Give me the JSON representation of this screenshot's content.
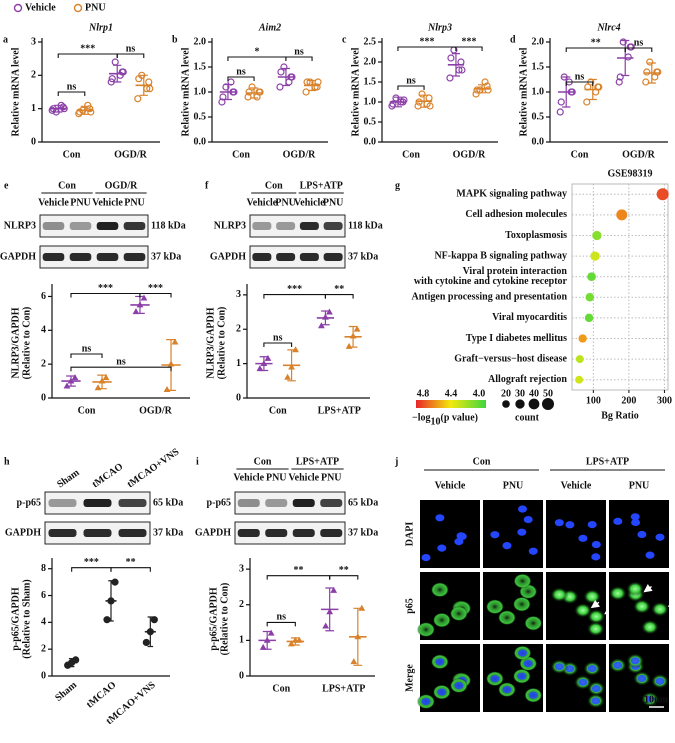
{
  "chart_data": [
    {
      "type": "dot",
      "letter": "a",
      "title": "Nlrp1",
      "ylabel": "Relative mRNA level",
      "categories": [
        "Con",
        "OGD/R"
      ],
      "marker": "open-circle",
      "legend": "top-left",
      "ylim": [
        0,
        3
      ],
      "yticks": [
        0,
        1,
        2,
        3
      ],
      "series": [
        {
          "name": "Vehicle",
          "color": "#8b3fa8",
          "values": [
            1.0,
            2.05
          ],
          "sd": [
            0.1,
            0.25
          ],
          "points": [
            [
              0.95,
              1.05,
              0.9,
              1.1,
              1.0,
              1.0
            ],
            [
              1.8,
              2.1,
              2.4,
              2.0,
              1.9,
              2.1
            ]
          ]
        },
        {
          "name": "PNU",
          "color": "#d9822b",
          "values": [
            0.95,
            1.7
          ],
          "sd": [
            0.12,
            0.3
          ],
          "points": [
            [
              0.85,
              1.0,
              0.95,
              1.1,
              0.9,
              0.9
            ],
            [
              1.3,
              1.8,
              2.0,
              1.6,
              1.9,
              1.6
            ]
          ]
        }
      ],
      "annotations": [
        "***",
        "ns",
        "ns"
      ]
    },
    {
      "type": "dot",
      "letter": "b",
      "title": "Aim2",
      "ylabel": "Relative mRNA level",
      "categories": [
        "Con",
        "OGD/R"
      ],
      "marker": "open-circle",
      "ylim": [
        0,
        2
      ],
      "yticks": [
        {
          "value": 0,
          "label": "0.0"
        },
        0.5,
        {
          "value": 1,
          "label": "1.0"
        },
        1.5,
        {
          "value": 2,
          "label": "2.0"
        }
      ],
      "series": [
        {
          "color": "#8b3fa8",
          "values": [
            1.0,
            1.3
          ],
          "sd": [
            0.15,
            0.17
          ],
          "points": [
            [
              0.8,
              1.0,
              1.1,
              1.2,
              0.9,
              1.0
            ],
            [
              1.1,
              1.3,
              1.5,
              1.2,
              1.4,
              1.3
            ]
          ]
        },
        {
          "color": "#d9822b",
          "values": [
            0.98,
            1.13
          ],
          "sd": [
            0.1,
            0.1
          ],
          "points": [
            [
              0.9,
              1.0,
              1.1,
              0.9,
              1.0,
              1.0
            ],
            [
              1.0,
              1.1,
              1.2,
              1.1,
              1.2,
              1.2
            ]
          ]
        }
      ],
      "annotations": [
        "*",
        "ns",
        "ns"
      ]
    },
    {
      "type": "dot",
      "letter": "c",
      "title": "Nlrp3",
      "ylabel": "Relative mRNA level",
      "categories": [
        "Con",
        "OGD/R"
      ],
      "marker": "open-circle",
      "ylim": [
        0,
        2.5
      ],
      "yticks": [
        {
          "value": 0,
          "label": "0.0"
        },
        0.5,
        {
          "value": 1,
          "label": "1.0"
        },
        1.5,
        {
          "value": 2,
          "label": "2.0"
        },
        2.5
      ],
      "series": [
        {
          "color": "#8b3fa8",
          "values": [
            1.0,
            1.93
          ],
          "sd": [
            0.12,
            0.28
          ],
          "points": [
            [
              0.9,
              1.0,
              1.1,
              1.0,
              0.95,
              1.05
            ],
            [
              1.6,
              2.0,
              2.3,
              1.8,
              2.1,
              1.8
            ]
          ]
        },
        {
          "color": "#d9822b",
          "values": [
            1.02,
            1.33
          ],
          "sd": [
            0.15,
            0.1
          ],
          "points": [
            [
              0.9,
              1.1,
              1.2,
              0.95,
              1.0,
              0.9
            ],
            [
              1.2,
              1.4,
              1.3,
              1.5,
              1.3,
              1.3
            ]
          ]
        }
      ],
      "annotations": [
        "***",
        "***",
        "ns"
      ]
    },
    {
      "type": "dot",
      "letter": "d",
      "title": "Nlrc4",
      "ylabel": "Relative mRNA level",
      "categories": [
        "Con",
        "OGD/R"
      ],
      "marker": "open-circle",
      "ylim": [
        0,
        2
      ],
      "yticks": [
        {
          "value": 0,
          "label": "0.0"
        },
        0.5,
        {
          "value": 1,
          "label": "1.0"
        },
        1.5,
        {
          "value": 2,
          "label": "2.0"
        }
      ],
      "series": [
        {
          "color": "#8b3fa8",
          "values": [
            1.0,
            1.68
          ],
          "sd": [
            0.3,
            0.35
          ],
          "points": [
            [
              0.6,
              1.0,
              1.3,
              1.2,
              0.8,
              1.0
            ],
            [
              1.2,
              1.9,
              2.0,
              1.7,
              1.3,
              1.9
            ]
          ]
        },
        {
          "color": "#d9822b",
          "values": [
            1.05,
            1.38
          ],
          "sd": [
            0.2,
            0.2
          ],
          "points": [
            [
              0.8,
              1.1,
              1.2,
              1.0,
              1.1,
              1.1
            ],
            [
              1.2,
              1.4,
              1.6,
              1.3,
              1.4,
              1.4
            ]
          ]
        }
      ],
      "annotations": [
        "**",
        "ns",
        "ns"
      ]
    },
    {
      "type": "dot",
      "ylabel": [
        "NLRP3/GAPDH",
        "(Relative to Con)"
      ],
      "categories": [
        "Con",
        "OGD/R"
      ],
      "marker": "triangle",
      "ylim": [
        0,
        6.5
      ],
      "yticks": [
        0,
        2,
        4,
        6
      ],
      "series": [
        {
          "color": "#8b3fa8",
          "values": [
            1.0,
            5.5
          ],
          "sd": [
            0.3,
            0.5
          ],
          "points": [
            [
              0.7,
              1.0,
              1.2
            ],
            [
              5.1,
              5.5,
              5.9
            ]
          ]
        },
        {
          "color": "#d9822b",
          "values": [
            0.95,
            1.95
          ],
          "sd": [
            0.4,
            1.5
          ],
          "points": [
            [
              0.6,
              1.0,
              1.2
            ],
            [
              0.5,
              2.0,
              3.3
            ]
          ]
        }
      ],
      "annotations": [
        "***",
        "***",
        "ns",
        "ns"
      ]
    },
    {
      "type": "dot",
      "ylabel": [
        "NLRP3/GAPDH",
        "(Relative to Con)"
      ],
      "categories": [
        "Con",
        "LPS+ATP"
      ],
      "marker": "triangle",
      "ylim": [
        0,
        3.2
      ],
      "yticks": [
        0,
        1,
        2,
        3
      ],
      "series": [
        {
          "color": "#8b3fa8",
          "values": [
            1.0,
            2.33
          ],
          "sd": [
            0.2,
            0.2
          ],
          "points": [
            [
              0.85,
              1.0,
              1.15
            ],
            [
              2.1,
              2.35,
              2.5
            ]
          ]
        },
        {
          "color": "#d9822b",
          "values": [
            0.95,
            1.78
          ],
          "sd": [
            0.45,
            0.3
          ],
          "points": [
            [
              0.6,
              0.9,
              1.4
            ],
            [
              1.5,
              1.8,
              2.0
            ]
          ]
        }
      ],
      "annotations": [
        "***",
        "**",
        "ns"
      ]
    },
    {
      "type": "bubble",
      "letter": "g",
      "title": "GSE98319",
      "terms": [
        [
          "MAPK signaling pathway"
        ],
        [
          "Cell adhesion molecules"
        ],
        [
          "Toxoplasmosis"
        ],
        [
          "NF-kappa B signaling pathway"
        ],
        [
          "Viral protein interaction",
          "with cytokine and cytokine receptor"
        ],
        [
          "Antigen processing and presentation"
        ],
        [
          "Viral myocarditis"
        ],
        [
          "Type I diabetes mellitus"
        ],
        [
          "Graft−versus−host disease"
        ],
        [
          "Allograft rejection"
        ]
      ],
      "term_colors": [
        "#111111",
        "#111111",
        "#111111",
        "#e8262a",
        "#111111",
        "#111111",
        "#111111",
        "#111111",
        "#111111",
        "#111111"
      ],
      "x": [
        295,
        180,
        110,
        105,
        95,
        90,
        88,
        70,
        62,
        60
      ],
      "count": [
        50,
        42,
        30,
        30,
        26,
        25,
        25,
        24,
        22,
        22
      ],
      "pvalue": [
        4.8,
        4.65,
        4.1,
        4.3,
        4.0,
        4.05,
        4.0,
        4.6,
        4.25,
        4.3
      ],
      "xlabel": "Bg Ratio",
      "xlim": [
        40,
        310
      ],
      "xticks": [
        100,
        200,
        300
      ],
      "grid": true,
      "colorscale": [
        "#e8262a",
        "#f2e90f",
        "#3fd63f"
      ],
      "clim": [
        4.9,
        3.9
      ],
      "colorbar_title": [
        "−log",
        "10",
        " (p value)"
      ],
      "colorbar_ticks": [
        4.8,
        4.4,
        {
          "value": 4,
          "label": "4.0"
        }
      ],
      "size_title": "count",
      "size_ticks": [
        20,
        30,
        40,
        50
      ]
    },
    {
      "type": "dot",
      "ylabel": [
        "p-p65/GAPDH",
        "(Relative to Sham)"
      ],
      "categories": [
        "Sham",
        "tMCAO",
        "tMCAO+VNS"
      ],
      "marker": "circle",
      "ylim": [
        0,
        8.5
      ],
      "yticks": [
        0,
        2,
        4,
        6,
        8
      ],
      "series": [
        {
          "color": "#222222",
          "values": [
            1.0,
            5.6,
            3.3
          ],
          "sd": [
            0.3,
            1.5,
            1.1
          ],
          "points": [
            [
              0.8,
              1.0,
              1.2
            ],
            [
              4.2,
              5.6,
              7.0
            ],
            [
              2.5,
              3.3,
              4.2
            ]
          ]
        }
      ],
      "annotations": [
        "***",
        "**"
      ]
    },
    {
      "type": "dot",
      "ylabel": [
        "p-p65/GAPDH",
        "(Relative to Con)"
      ],
      "categories": [
        "Con",
        "LPS+ATP"
      ],
      "marker": "triangle",
      "ylim": [
        0,
        3.2
      ],
      "yticks": [
        0,
        1,
        2,
        3
      ],
      "series": [
        {
          "color": "#8b3fa8",
          "values": [
            1.0,
            1.87
          ],
          "sd": [
            0.25,
            0.6
          ],
          "points": [
            [
              0.8,
              1.0,
              1.2
            ],
            [
              1.4,
              1.8,
              2.4
            ]
          ]
        },
        {
          "color": "#d9822b",
          "values": [
            0.97,
            1.1
          ],
          "sd": [
            0.1,
            0.8
          ],
          "points": [
            [
              0.9,
              1.0,
              1.0
            ],
            [
              0.4,
              1.1,
              1.9
            ]
          ]
        }
      ],
      "annotations": [
        "**",
        "**",
        "ns"
      ]
    }
  ],
  "blots": [
    {
      "letter": "e",
      "groups": [
        {
          "label": "Con",
          "lanes": [
            "Vehicle",
            "PNU"
          ]
        },
        {
          "label": "OGD/R",
          "lanes": [
            "Vehicle",
            "PNU"
          ]
        }
      ],
      "rows": [
        {
          "name": "NLRP3",
          "kda": "118 kDa"
        },
        {
          "name": "GAPDH",
          "kda": "37 kDa"
        }
      ]
    },
    {
      "letter": "f",
      "groups": [
        {
          "label": "Con",
          "lanes": [
            "Vehicle",
            "PNU"
          ]
        },
        {
          "label": "LPS+ATP",
          "lanes": [
            "Vehicle",
            "PNU"
          ]
        }
      ],
      "rows": [
        {
          "name": "NLRP3",
          "kda": "118 kDa"
        },
        {
          "name": "GAPDH",
          "kda": "37 kDa"
        }
      ]
    },
    {
      "letter": "h",
      "groups": [
        {
          "lanes": [
            "Sham",
            "tMCAO",
            "tMCAO+VNS"
          ]
        }
      ],
      "rows": [
        {
          "name": "p-p65",
          "kda": "65 kDa"
        },
        {
          "name": "GAPDH",
          "kda": "37 kDa"
        }
      ]
    },
    {
      "letter": "i",
      "groups": [
        {
          "label": "Con",
          "lanes": [
            "Vehicle",
            "PNU"
          ]
        },
        {
          "label": "LPS+ATP",
          "lanes": [
            "Vehicle",
            "PNU"
          ]
        }
      ],
      "rows": [
        {
          "name": "p-p65",
          "kda": "65 kDa"
        },
        {
          "name": "GAPDH",
          "kda": "37 kDa"
        }
      ]
    }
  ],
  "micrograph": {
    "letter": "j",
    "groups": [
      {
        "label": "Con",
        "lanes": [
          "Vehicle",
          "PNU"
        ]
      },
      {
        "label": "LPS+ATP",
        "lanes": [
          "Vehicle",
          "PNU"
        ]
      }
    ],
    "rows": [
      "DAPI",
      "p65",
      "Merge"
    ],
    "scale_bar": "10μm"
  }
}
